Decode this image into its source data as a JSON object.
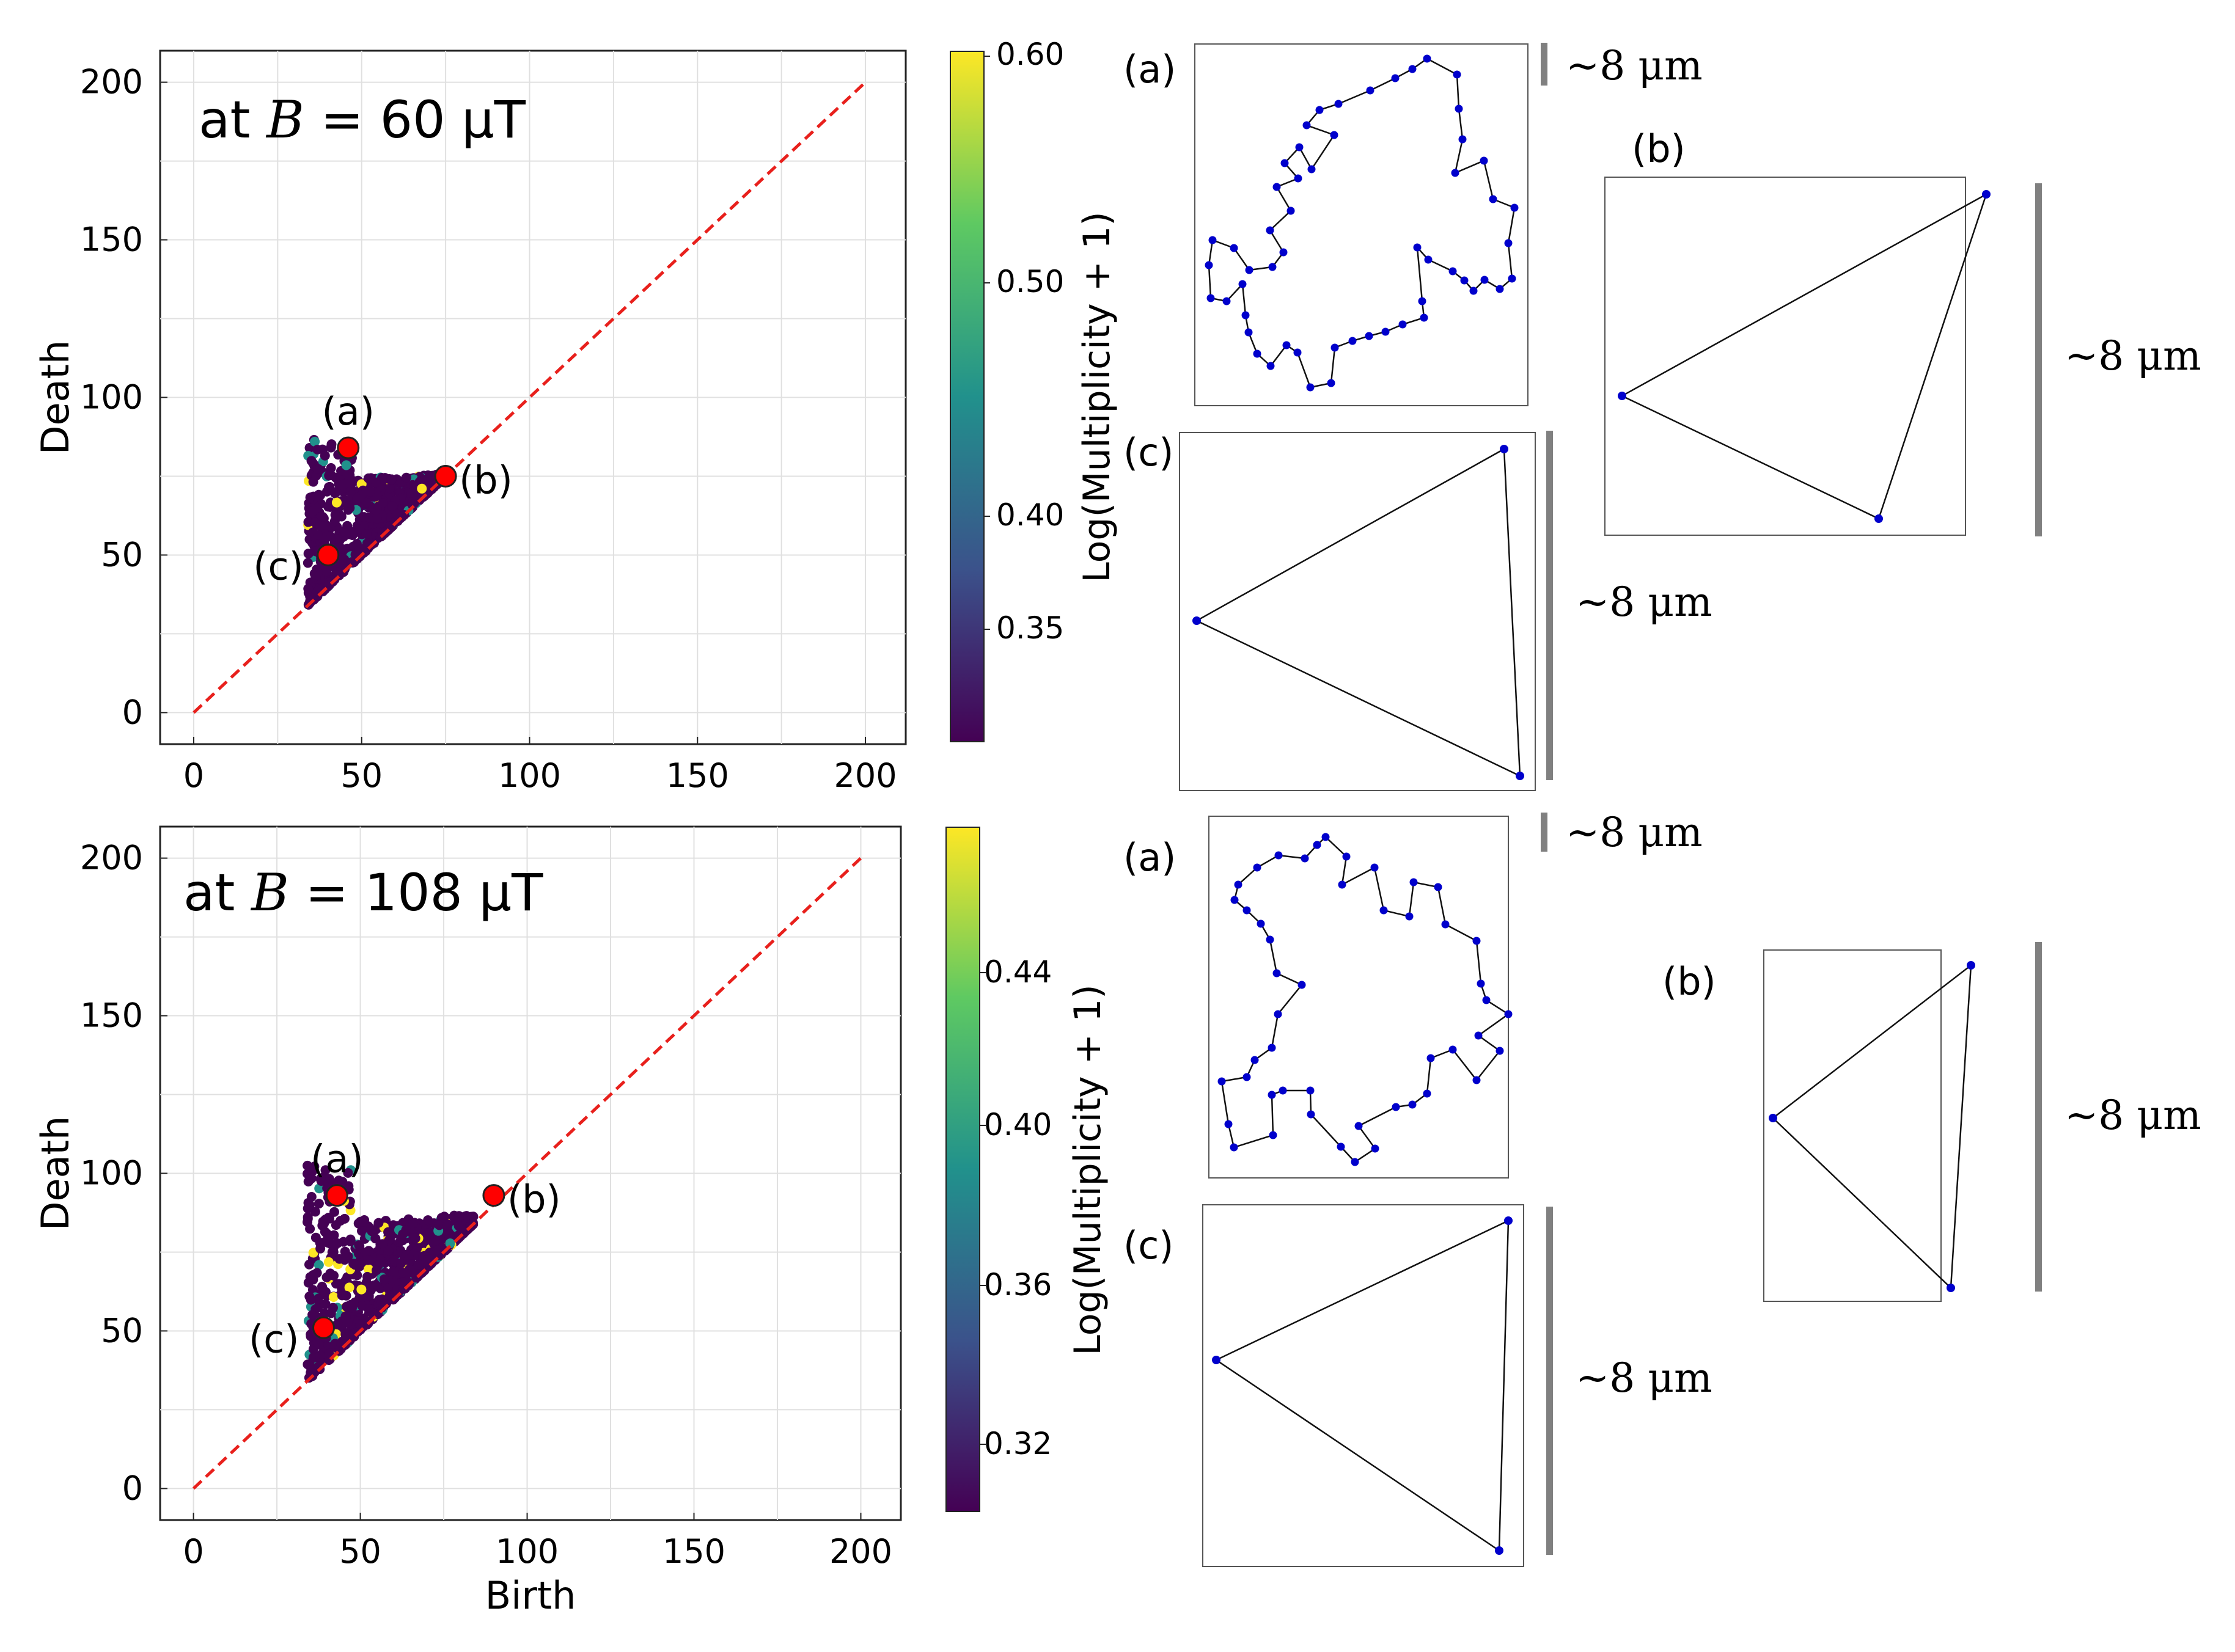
{
  "colors": {
    "diagonal": "#e8201c",
    "highlight": "#ff0000",
    "point": "#440154",
    "node": "#0000cc",
    "scalebar": "#808080",
    "frame": "#333333"
  },
  "chart_data": [
    {
      "type": "scatter",
      "title": "at B = 60 μT",
      "xlabel": "",
      "ylabel": "Death",
      "xlim": [
        -10,
        212
      ],
      "ylim": [
        -10,
        210
      ],
      "x_ticks": [
        "0",
        "50",
        "100",
        "150",
        "200"
      ],
      "y_ticks": [
        "0",
        "50",
        "100",
        "150",
        "200"
      ],
      "grid": true,
      "colorbar": {
        "label": "Log(Multiplicity + 1)",
        "ticks": [
          "0.35",
          "0.40",
          "0.50",
          "0.60"
        ]
      },
      "diagonal": [
        [
          0,
          0
        ],
        [
          200,
          200
        ]
      ],
      "highlighted_points": [
        {
          "label": "(a)",
          "x": 46,
          "y": 84
        },
        {
          "label": "(b)",
          "x": 75,
          "y": 75
        },
        {
          "label": "(c)",
          "x": 40,
          "y": 50
        }
      ]
    },
    {
      "type": "scatter",
      "title": "at B = 108 μT",
      "xlabel": "Birth",
      "ylabel": "Death",
      "xlim": [
        -10,
        212
      ],
      "ylim": [
        -10,
        210
      ],
      "x_ticks": [
        "0",
        "50",
        "100",
        "150",
        "200"
      ],
      "y_ticks": [
        "0",
        "50",
        "100",
        "150",
        "200"
      ],
      "grid": true,
      "colorbar": {
        "label": "Log(Multiplicity + 1)",
        "ticks": [
          "0.32",
          "0.36",
          "0.40",
          "0.44"
        ]
      },
      "diagonal": [
        [
          0,
          0
        ],
        [
          200,
          200
        ]
      ],
      "highlighted_points": [
        {
          "label": "(a)",
          "x": 43,
          "y": 93
        },
        {
          "label": "(b)",
          "x": 90,
          "y": 93
        },
        {
          "label": "(c)",
          "x": 39,
          "y": 51
        }
      ]
    }
  ],
  "insets": {
    "scale_label": "~8 μm",
    "top": [
      {
        "label": "(a)"
      },
      {
        "label": "(b)"
      },
      {
        "label": "(c)"
      }
    ],
    "bottom": [
      {
        "label": "(a)"
      },
      {
        "label": "(b)"
      },
      {
        "label": "(c)"
      }
    ]
  }
}
